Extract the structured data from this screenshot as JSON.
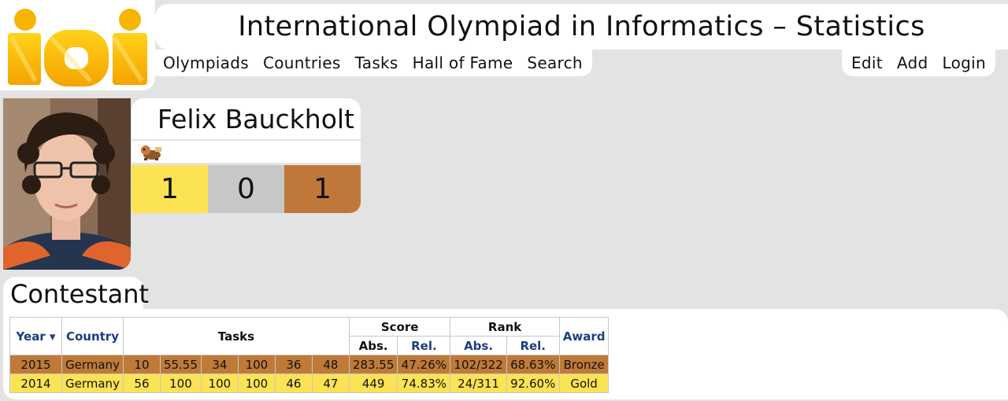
{
  "header": {
    "logo_text": "ioi",
    "title": "International Olympiad in Informatics – Statistics"
  },
  "nav": {
    "left": [
      "Olympiads",
      "Countries",
      "Tasks",
      "Hall of Fame",
      "Search"
    ],
    "right": [
      "Edit",
      "Add",
      "Login"
    ]
  },
  "profile": {
    "name": "Felix Bauckholt",
    "medals": {
      "gold": "1",
      "silver": "0",
      "bronze": "1"
    }
  },
  "section": {
    "title": "Contestant"
  },
  "table": {
    "headers": {
      "year": "Year ▾",
      "country": "Country",
      "tasks": "Tasks",
      "score": "Score",
      "rank": "Rank",
      "abs": "Abs.",
      "rel": "Rel.",
      "award": "Award"
    },
    "rows": [
      {
        "year": "2015",
        "country": "Germany",
        "tasks": [
          "10",
          "55.55",
          "34",
          "100",
          "36",
          "48"
        ],
        "score_abs": "283.55",
        "score_rel": "47.26%",
        "rank_abs": "102/322",
        "rank_rel": "68.63%",
        "award": "Bronze"
      },
      {
        "year": "2014",
        "country": "Germany",
        "tasks": [
          "56",
          "100",
          "100",
          "100",
          "46",
          "47"
        ],
        "score_abs": "449",
        "score_rel": "74.83%",
        "rank_abs": "24/311",
        "rank_rel": "92.60%",
        "award": "Gold"
      }
    ]
  },
  "colors": {
    "gold": "#fbe354",
    "silver": "#c7c7c7",
    "bronze": "#c0783a",
    "header_blue": "#1a3d84",
    "background": "#e3e3e3"
  }
}
